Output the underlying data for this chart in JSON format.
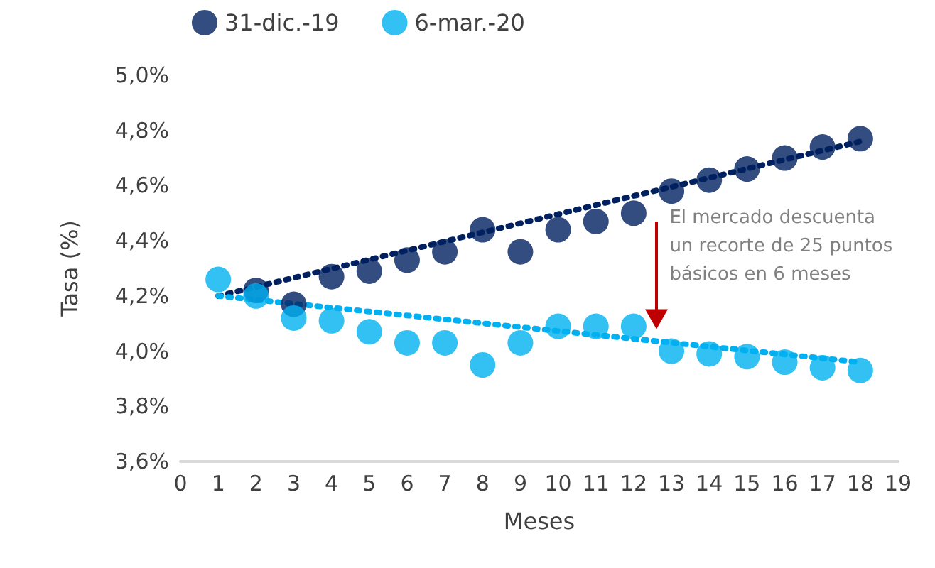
{
  "chart_data": {
    "type": "scatter",
    "xlabel": "Meses",
    "ylabel": "Tasa (%)",
    "x": [
      1,
      2,
      3,
      4,
      5,
      6,
      7,
      8,
      9,
      10,
      11,
      12,
      13,
      14,
      15,
      16,
      17,
      18
    ],
    "series": [
      {
        "name": "31-dic.-19",
        "color": "#002060",
        "marker": "circle",
        "values": [
          null,
          4.22,
          4.17,
          4.27,
          4.29,
          4.33,
          4.36,
          4.44,
          4.36,
          4.44,
          4.47,
          4.5,
          4.58,
          4.62,
          4.66,
          4.7,
          4.74,
          4.77
        ]
      },
      {
        "name": "6-mar.-20",
        "color": "#00b0f0",
        "marker": "circle",
        "values": [
          4.26,
          4.2,
          4.12,
          4.11,
          4.07,
          4.03,
          4.03,
          3.95,
          4.03,
          4.09,
          4.09,
          4.09,
          4.0,
          3.99,
          3.98,
          3.96,
          3.94,
          3.93
        ]
      },
      {
        "type": "line",
        "color": "#002060",
        "line_style": "dotted",
        "values": [
          4.2,
          null,
          null,
          null,
          null,
          null,
          null,
          null,
          null,
          null,
          null,
          null,
          null,
          null,
          null,
          null,
          null,
          4.76
        ]
      },
      {
        "type": "line",
        "color": "#00b0f0",
        "line_style": "dotted",
        "values": [
          4.2,
          null,
          null,
          null,
          null,
          null,
          null,
          null,
          null,
          null,
          null,
          null,
          null,
          null,
          null,
          null,
          null,
          3.96
        ]
      }
    ],
    "xlim": [
      0,
      19
    ],
    "xticks": [
      0,
      1,
      2,
      3,
      4,
      5,
      6,
      7,
      8,
      9,
      10,
      11,
      12,
      13,
      14,
      15,
      16,
      17,
      18,
      19
    ],
    "ylim": [
      3.6,
      5.0
    ],
    "yticks": [
      {
        "value": 3.6,
        "label": "3,6%"
      },
      {
        "value": 3.8,
        "label": "3,8%"
      },
      {
        "value": 4.0,
        "label": "4,0%"
      },
      {
        "value": 4.2,
        "label": "4,2%"
      },
      {
        "value": 4.4,
        "label": "4,4%"
      },
      {
        "value": 4.6,
        "label": "4,6%"
      },
      {
        "value": 4.8,
        "label": "4,8%"
      },
      {
        "value": 5.0,
        "label": "5,0%"
      }
    ],
    "grid": false,
    "legend": "top left",
    "annotations": [
      "El mercado descuenta un recorte de 25 puntos básicos en 6 meses"
    ]
  }
}
